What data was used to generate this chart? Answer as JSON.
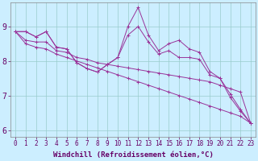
{
  "background_color": "#cceeff",
  "line_color": "#993399",
  "grid_color": "#99cccc",
  "xlabel": "Windchill (Refroidissement éolien,°C)",
  "xlabel_fontsize": 6.5,
  "xtick_fontsize": 5.5,
  "ytick_fontsize": 7,
  "xlim": [
    -0.5,
    23.5
  ],
  "ylim": [
    5.8,
    9.7
  ],
  "yticks": [
    6,
    7,
    8,
    9
  ],
  "xticks": [
    0,
    1,
    2,
    3,
    4,
    5,
    6,
    7,
    8,
    9,
    10,
    11,
    12,
    13,
    14,
    15,
    16,
    17,
    18,
    19,
    20,
    21,
    22,
    23
  ],
  "series": [
    [
      8.85,
      8.85,
      8.7,
      8.85,
      8.4,
      8.35,
      7.95,
      7.78,
      7.68,
      7.9,
      8.1,
      9.0,
      9.55,
      8.75,
      8.3,
      8.5,
      8.6,
      8.35,
      8.25,
      7.7,
      7.5,
      7.05,
      6.6,
      6.2
    ],
    [
      8.85,
      8.85,
      8.7,
      8.85,
      8.4,
      8.35,
      7.95,
      7.78,
      7.68,
      7.9,
      8.1,
      8.75,
      9.0,
      8.55,
      8.2,
      8.3,
      8.1,
      8.1,
      8.05,
      7.6,
      7.5,
      6.95,
      6.55,
      6.2
    ],
    [
      8.85,
      8.6,
      8.55,
      8.55,
      8.3,
      8.25,
      8.1,
      8.05,
      7.95,
      7.9,
      7.85,
      7.8,
      7.75,
      7.7,
      7.65,
      7.6,
      7.55,
      7.5,
      7.45,
      7.4,
      7.3,
      7.2,
      7.1,
      6.2
    ],
    [
      8.85,
      8.5,
      8.4,
      8.35,
      8.2,
      8.1,
      8.0,
      7.9,
      7.8,
      7.7,
      7.6,
      7.5,
      7.4,
      7.3,
      7.2,
      7.1,
      7.0,
      6.9,
      6.8,
      6.7,
      6.6,
      6.5,
      6.4,
      6.2
    ]
  ]
}
